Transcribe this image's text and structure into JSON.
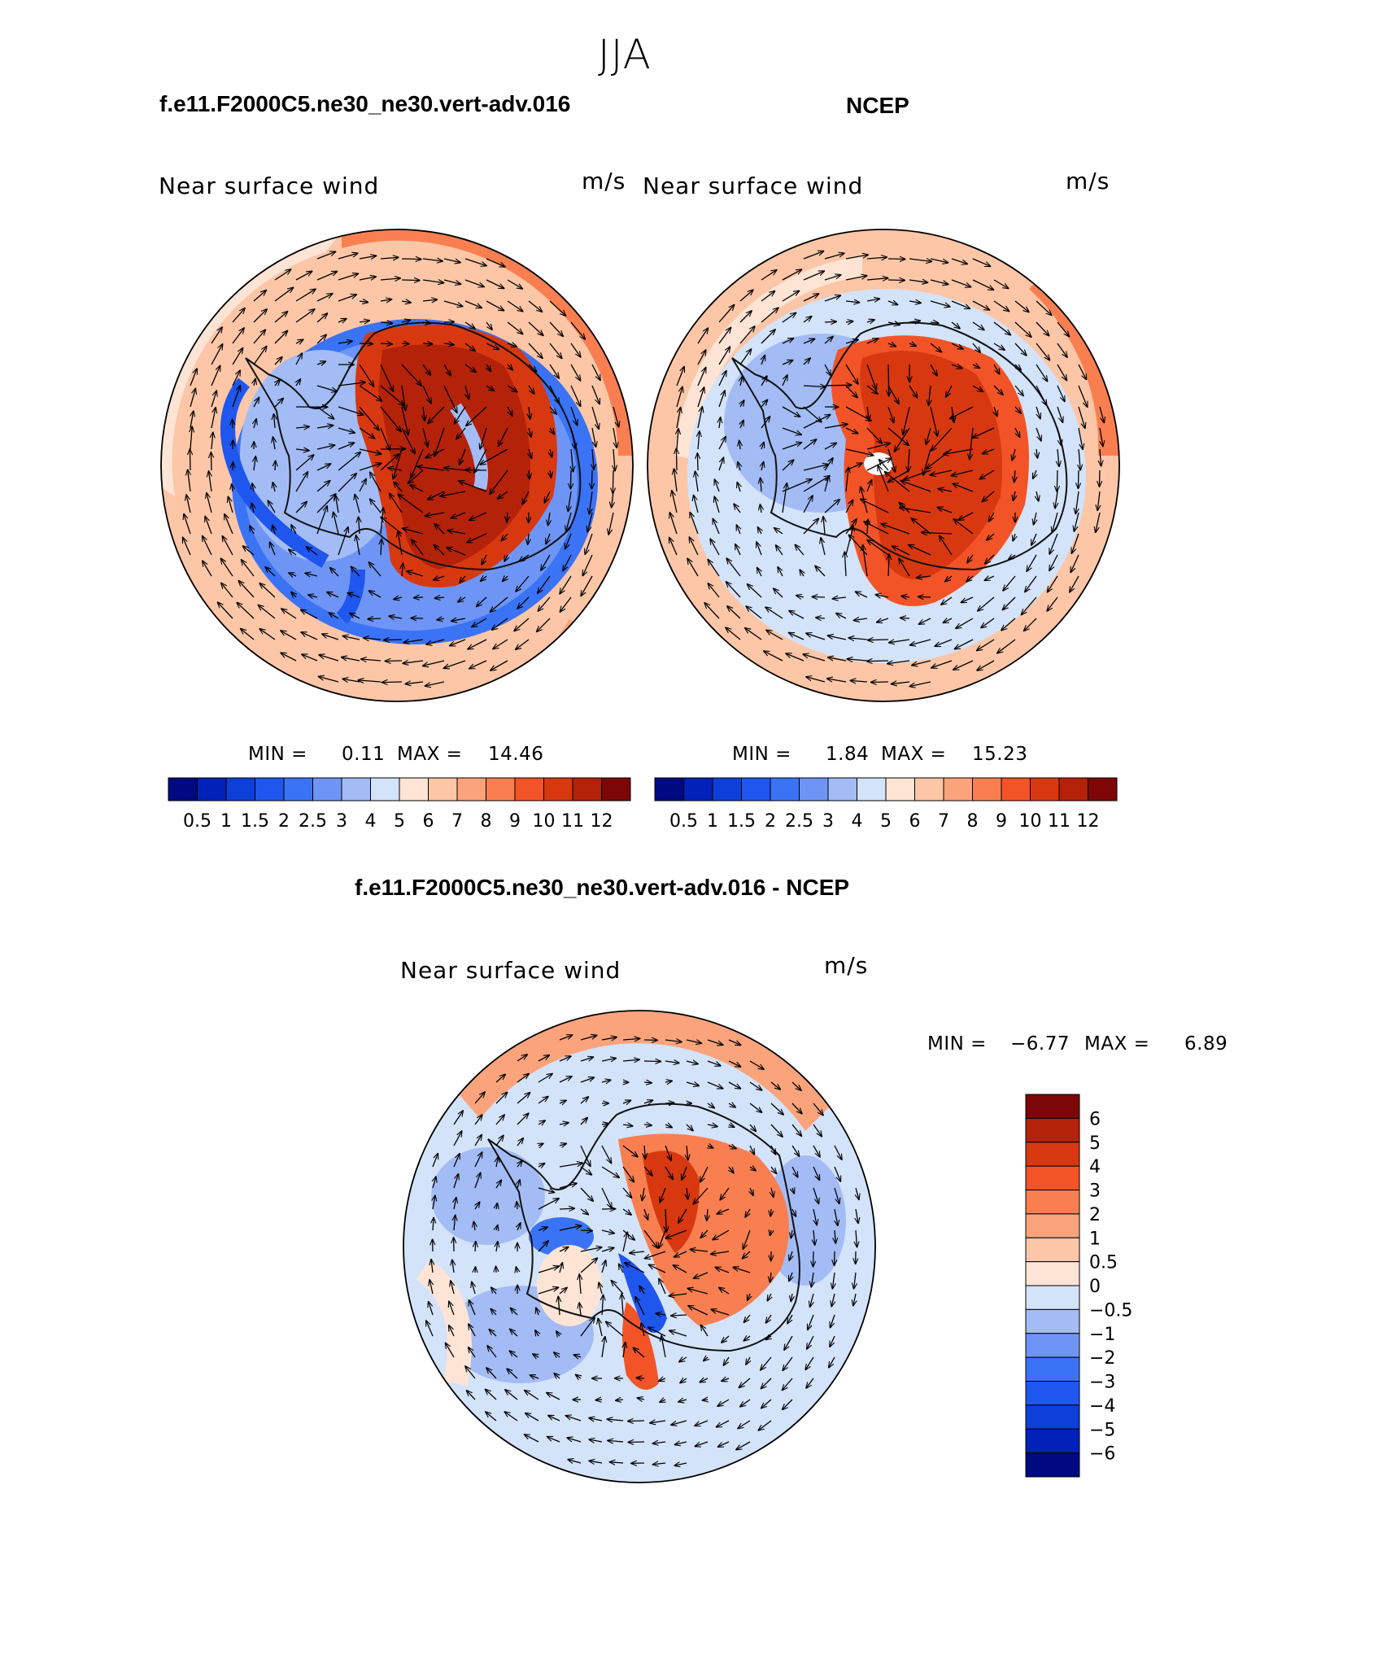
{
  "season": "JJA",
  "panels": [
    {
      "title": "f.e11.F2000C5.ne30_ne30.vert-adv.016",
      "variable": "Near surface wind",
      "units": "m/s",
      "min_label": "MIN =",
      "min": "0.11",
      "max_label": "MAX =",
      "max": "14.46"
    },
    {
      "title": "NCEP",
      "variable": "Near surface wind",
      "units": "m/s",
      "min_label": "MIN =",
      "min": "1.84",
      "max_label": "MAX =",
      "max": "15.23"
    },
    {
      "title": "f.e11.F2000C5.ne30_ne30.vert-adv.016 - NCEP",
      "variable": "Near surface wind",
      "units": "m/s",
      "min_label": "MIN =",
      "min": "−6.77",
      "max_label": "MAX =",
      "max": "6.89"
    }
  ],
  "colorbar_main": {
    "labels": [
      "0.5",
      "1",
      "1.5",
      "2",
      "2.5",
      "3",
      "4",
      "5",
      "6",
      "7",
      "8",
      "9",
      "10",
      "11",
      "12"
    ],
    "colors": [
      "#000a80",
      "#0022b8",
      "#0d3fd9",
      "#1f56ee",
      "#3a73f5",
      "#6e95f6",
      "#a3bcf5",
      "#d3e3fa",
      "#fde4d5",
      "#fcc6a7",
      "#fba47c",
      "#f97f51",
      "#f25427",
      "#d8380f",
      "#b4220a",
      "#7c0706"
    ]
  },
  "colorbar_diff": {
    "labels": [
      "6",
      "5",
      "4",
      "3",
      "2",
      "1",
      "0.5",
      "0",
      "−0.5",
      "−1",
      "−2",
      "−3",
      "−4",
      "−5",
      "−6"
    ],
    "colors": [
      "#7c0706",
      "#b4220a",
      "#d8380f",
      "#f25427",
      "#f97f51",
      "#fba47c",
      "#fcc6a7",
      "#fde4d5",
      "#d3e3fa",
      "#a3bcf5",
      "#6e95f6",
      "#3a73f5",
      "#1f56ee",
      "#0d3fd9",
      "#0022b8",
      "#000a80"
    ]
  }
}
